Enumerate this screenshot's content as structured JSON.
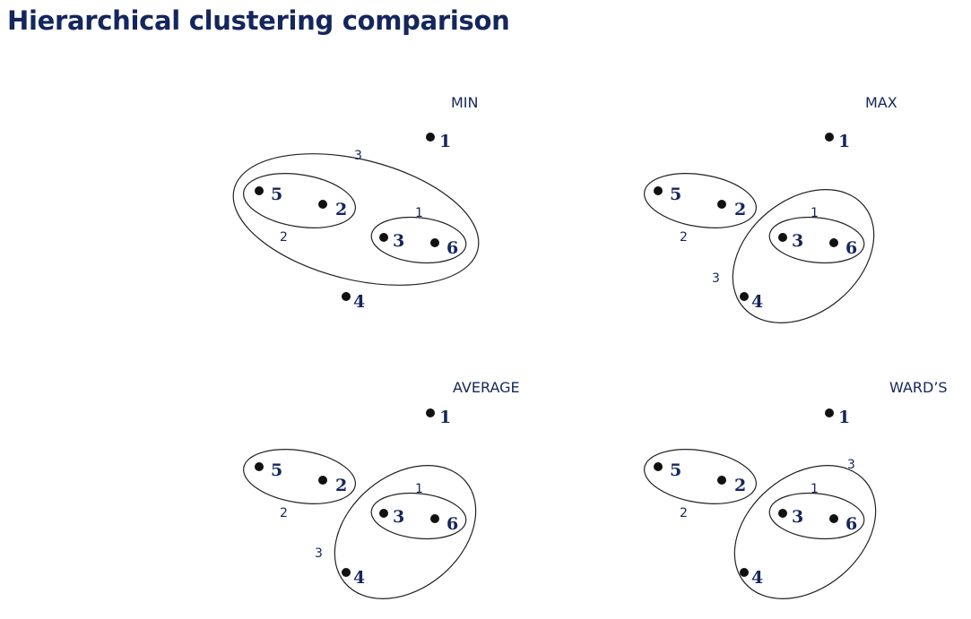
{
  "title": "Hierarchical clustering comparison",
  "panels": [
    {
      "id": "min",
      "label": "MIN",
      "points": [
        "1",
        "5",
        "2",
        "3",
        "6",
        "4"
      ],
      "merge_labels": [
        "3",
        "2",
        "1"
      ]
    },
    {
      "id": "max",
      "label": "MAX",
      "points": [
        "1",
        "5",
        "2",
        "3",
        "6",
        "4"
      ],
      "merge_labels": [
        "2",
        "1",
        "3"
      ]
    },
    {
      "id": "average",
      "label": "AVERAGE",
      "points": [
        "1",
        "5",
        "2",
        "3",
        "6",
        "4"
      ],
      "merge_labels": [
        "2",
        "1",
        "3"
      ]
    },
    {
      "id": "wards",
      "label": "WARD’S",
      "points": [
        "1",
        "5",
        "2",
        "3",
        "6",
        "4"
      ],
      "merge_labels": [
        "2",
        "1",
        "3"
      ]
    }
  ]
}
